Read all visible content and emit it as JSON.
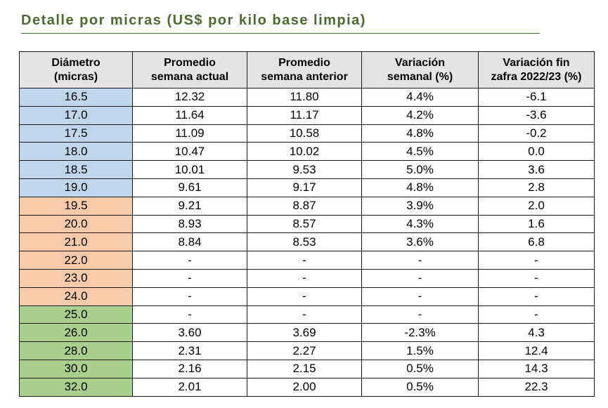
{
  "title": "Detalle por micras (US$ por kilo base limpia)",
  "table": {
    "headers": [
      [
        "Diámetro",
        "(micras)"
      ],
      [
        "Promedio",
        "semana actual"
      ],
      [
        "Promedio",
        "semana anterior"
      ],
      [
        "Variación",
        "semanal (%)"
      ],
      [
        "Variación fin",
        "zafra 2022/23 (%)"
      ]
    ],
    "group_colors": {
      "blue": "#bfd6ec",
      "orange": "#f7caaa",
      "green": "#a8cf8c"
    },
    "rows": [
      {
        "group": "blue",
        "cells": [
          "16.5",
          "12.32",
          "11.80",
          "4.4%",
          "-6.1"
        ]
      },
      {
        "group": "blue",
        "cells": [
          "17.0",
          "11.64",
          "11.17",
          "4.2%",
          "-3.6"
        ]
      },
      {
        "group": "blue",
        "cells": [
          "17.5",
          "11.09",
          "10.58",
          "4.8%",
          "-0.2"
        ]
      },
      {
        "group": "blue",
        "cells": [
          "18.0",
          "10.47",
          "10.02",
          "4.5%",
          "0.0"
        ]
      },
      {
        "group": "blue",
        "cells": [
          "18.5",
          "10.01",
          "9.53",
          "5.0%",
          "3.6"
        ]
      },
      {
        "group": "blue",
        "cells": [
          "19.0",
          "9.61",
          "9.17",
          "4.8%",
          "2.8"
        ]
      },
      {
        "group": "orange",
        "cells": [
          "19.5",
          "9.21",
          "8.87",
          "3.9%",
          "2.0"
        ]
      },
      {
        "group": "orange",
        "cells": [
          "20.0",
          "8.93",
          "8.57",
          "4.3%",
          "1.6"
        ]
      },
      {
        "group": "orange",
        "cells": [
          "21.0",
          "8.84",
          "8.53",
          "3.6%",
          "6.8"
        ]
      },
      {
        "group": "orange",
        "cells": [
          "22.0",
          "-",
          "-",
          "-",
          "-"
        ]
      },
      {
        "group": "orange",
        "cells": [
          "23.0",
          "-",
          "-",
          "-",
          "-"
        ]
      },
      {
        "group": "orange",
        "cells": [
          "24.0",
          "-",
          "-",
          "-",
          "-"
        ]
      },
      {
        "group": "green",
        "cells": [
          "25.0",
          "-",
          "-",
          "-",
          "-"
        ]
      },
      {
        "group": "green",
        "cells": [
          "26.0",
          "3.60",
          "3.69",
          "-2.3%",
          "4.3"
        ]
      },
      {
        "group": "green",
        "cells": [
          "28.0",
          "2.31",
          "2.27",
          "1.5%",
          "12.4"
        ]
      },
      {
        "group": "green",
        "cells": [
          "30.0",
          "2.16",
          "2.15",
          "0.5%",
          "14.3"
        ]
      },
      {
        "group": "green",
        "cells": [
          "32.0",
          "2.01",
          "2.00",
          "0.5%",
          "22.3"
        ]
      }
    ]
  }
}
